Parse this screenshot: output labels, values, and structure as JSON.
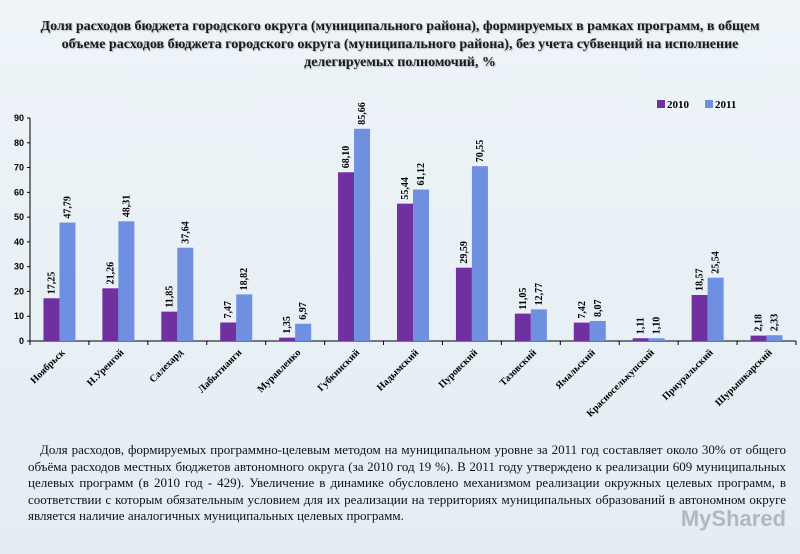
{
  "title": "Доля расходов бюджета городского округа (муниципального района), формируемых в рамках программ, в общем объеме расходов бюджета городского округа (муниципального района), без учета субвенций на исполнение делегируемых полномочий, %",
  "paragraph": "Доля расходов, формируемых программно-целевым методом на муниципальном уровне за 2011 год составляет около 30% от общего объёма расходов местных бюджетов автономного округа (за 2010 год 19 %). В 2011 году утверждено к реализации 609 муниципальных целевых программ (в 2010 год - 429). Увеличение в динамике обусловлено механизмом реализации окружных целевых программ, в соответствии с которым обязательным условием для их реализации на территориях муниципальных образований в автономном округе является наличие аналогичных муниципальных целевых программ.",
  "watermark": "MyShared",
  "chart_data": {
    "type": "bar",
    "title": "",
    "xlabel": "",
    "ylabel": "",
    "ylim": [
      0,
      90
    ],
    "yticks": [
      "0",
      "10",
      "20",
      "30",
      "40",
      "50",
      "60",
      "70",
      "80",
      "90"
    ],
    "grid": false,
    "legend_position": "top-right",
    "categories": [
      "Ноябрьск",
      "Н.Уренгой",
      "Салехард",
      "Лабытнанги",
      "Муравленко",
      "Губкинский",
      "Надымский",
      "Пуровский",
      "Тазовский",
      "Ямальский",
      "Красноселькупский",
      "Приуральский",
      "Шурышкарский"
    ],
    "series": [
      {
        "name": "2010",
        "color": "#7030a0",
        "values": [
          17.25,
          21.26,
          11.85,
          7.47,
          1.35,
          68.1,
          55.44,
          29.59,
          11.05,
          7.42,
          1.11,
          18.57,
          2.18
        ],
        "labels": [
          "17,25",
          "21,26",
          "11,85",
          "7,47",
          "1,35",
          "68,10",
          "55,44",
          "29,59",
          "11,05",
          "7,42",
          "1,11",
          "18,57",
          "2,18"
        ]
      },
      {
        "name": "2011",
        "color": "#6f8fe0",
        "values": [
          47.79,
          48.31,
          37.64,
          18.82,
          6.97,
          85.66,
          61.12,
          70.55,
          12.77,
          8.07,
          1.1,
          25.54,
          2.33
        ],
        "labels": [
          "47,79",
          "48,31",
          "37,64",
          "18,82",
          "6,97",
          "85,66",
          "61,12",
          "70,55",
          "12,77",
          "8,07",
          "1,10",
          "25,54",
          "2,33"
        ]
      }
    ]
  }
}
